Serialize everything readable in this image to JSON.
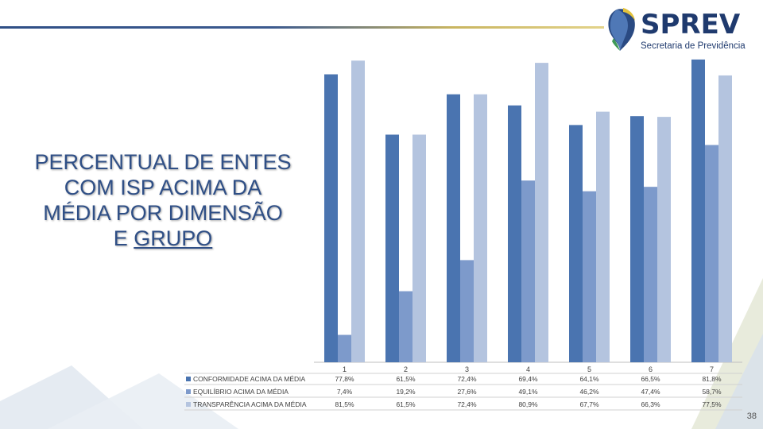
{
  "slide": {
    "title_lines": [
      "PERCENTUAL DE ENTES",
      "COM ISP ACIMA DA",
      "MÉDIA POR DIMENSÃO"
    ],
    "title_last_prefix": "E ",
    "title_last_underlined": "GRUPO",
    "page_number": "38"
  },
  "logo": {
    "name": "SPREV",
    "subtitle": "Secretaria de Previdência",
    "icon": "sprev-emblem-icon"
  },
  "colors": {
    "accent_blue": "#2f4f86",
    "series": [
      "#4a74b0",
      "#7d9acb",
      "#b4c4df"
    ]
  },
  "chart_data": {
    "type": "bar",
    "categories": [
      "1",
      "2",
      "3",
      "4",
      "5",
      "6",
      "7"
    ],
    "series": [
      {
        "name": "CONFORMIDADE ACIMA DA MÉDIA",
        "values": [
          77.8,
          61.5,
          72.4,
          69.4,
          64.1,
          66.5,
          81.8
        ],
        "labels": [
          "77,8%",
          "61,5%",
          "72,4%",
          "69,4%",
          "64,1%",
          "66,5%",
          "81,8%"
        ]
      },
      {
        "name": "EQUILÍBRIO ACIMA DA MÉDIA",
        "values": [
          7.4,
          19.2,
          27.6,
          49.1,
          46.2,
          47.4,
          58.7
        ],
        "labels": [
          "7,4%",
          "19,2%",
          "27,6%",
          "49,1%",
          "46,2%",
          "47,4%",
          "58,7%"
        ]
      },
      {
        "name": "TRANSPARÊNCIA ACIMA DA MÉDIA",
        "values": [
          81.5,
          61.5,
          72.4,
          80.9,
          67.7,
          66.3,
          77.5
        ],
        "labels": [
          "81,5%",
          "61,5%",
          "72,4%",
          "80,9%",
          "67,7%",
          "66,3%",
          "77,5%"
        ]
      }
    ],
    "ylim": [
      0,
      85
    ],
    "grid": false,
    "legend": "data table below chart"
  }
}
